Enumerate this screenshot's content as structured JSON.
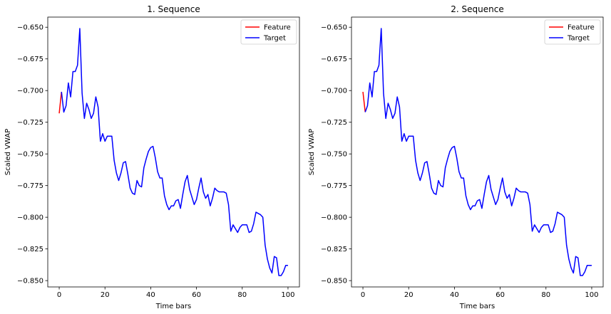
{
  "chart_data": [
    {
      "type": "line",
      "title": "1. Sequence",
      "xlabel": "Time bars",
      "ylabel": "Scaled VWAP",
      "xlim": [
        -5,
        105
      ],
      "ylim": [
        -0.855,
        -0.642
      ],
      "xticks": [
        0,
        20,
        40,
        60,
        80,
        100
      ],
      "yticks": [
        -0.65,
        -0.675,
        -0.7,
        -0.725,
        -0.75,
        -0.775,
        -0.8,
        -0.825,
        -0.85
      ],
      "ytick_labels": [
        "−0.650",
        "−0.675",
        "−0.700",
        "−0.725",
        "−0.750",
        "−0.775",
        "−0.800",
        "−0.825",
        "−0.850"
      ],
      "legend": "top-right",
      "grid": false,
      "series": [
        {
          "name": "Feature",
          "color": "#ff0000",
          "x": [
            0,
            1
          ],
          "values": [
            -0.718,
            -0.701
          ]
        },
        {
          "name": "Target",
          "color": "#0000ff",
          "x_start": 1,
          "values": [
            -0.701,
            -0.717,
            -0.712,
            -0.694,
            -0.705,
            -0.685,
            -0.685,
            -0.68,
            -0.651,
            -0.702,
            -0.722,
            -0.71,
            -0.715,
            -0.722,
            -0.718,
            -0.705,
            -0.713,
            -0.74,
            -0.734,
            -0.74,
            -0.736,
            -0.736,
            -0.736,
            -0.755,
            -0.765,
            -0.771,
            -0.765,
            -0.757,
            -0.756,
            -0.766,
            -0.777,
            -0.781,
            -0.782,
            -0.771,
            -0.775,
            -0.776,
            -0.761,
            -0.754,
            -0.748,
            -0.745,
            -0.744,
            -0.753,
            -0.764,
            -0.769,
            -0.769,
            -0.783,
            -0.79,
            -0.794,
            -0.791,
            -0.791,
            -0.787,
            -0.786,
            -0.793,
            -0.782,
            -0.772,
            -0.767,
            -0.778,
            -0.784,
            -0.79,
            -0.786,
            -0.777,
            -0.769,
            -0.78,
            -0.785,
            -0.782,
            -0.791,
            -0.785,
            -0.777,
            -0.779,
            -0.78,
            -0.78,
            -0.78,
            -0.781,
            -0.79,
            -0.811,
            -0.806,
            -0.809,
            -0.812,
            -0.808,
            -0.806,
            -0.806,
            -0.806,
            -0.812,
            -0.811,
            -0.805,
            -0.796,
            -0.797,
            -0.798,
            -0.8,
            -0.822,
            -0.833,
            -0.84,
            -0.844,
            -0.831,
            -0.832,
            -0.846,
            -0.846,
            -0.843,
            -0.838,
            -0.838
          ]
        }
      ]
    },
    {
      "type": "line",
      "title": "2. Sequence",
      "xlabel": "Time bars",
      "ylabel": "Scaled VWAP",
      "xlim": [
        -5,
        105
      ],
      "ylim": [
        -0.855,
        -0.642
      ],
      "xticks": [
        0,
        20,
        40,
        60,
        80,
        100
      ],
      "yticks": [
        -0.65,
        -0.675,
        -0.7,
        -0.725,
        -0.75,
        -0.775,
        -0.8,
        -0.825,
        -0.85
      ],
      "ytick_labels": [
        "−0.650",
        "−0.675",
        "−0.700",
        "−0.725",
        "−0.750",
        "−0.775",
        "−0.800",
        "−0.825",
        "−0.850"
      ],
      "legend": "top-right",
      "grid": false,
      "series": [
        {
          "name": "Feature",
          "color": "#ff0000",
          "x": [
            0,
            1
          ],
          "values": [
            -0.701,
            -0.717
          ]
        },
        {
          "name": "Target",
          "color": "#0000ff",
          "x_start": 1,
          "values": [
            -0.717,
            -0.712,
            -0.694,
            -0.705,
            -0.685,
            -0.685,
            -0.68,
            -0.651,
            -0.702,
            -0.722,
            -0.71,
            -0.715,
            -0.722,
            -0.718,
            -0.705,
            -0.713,
            -0.74,
            -0.734,
            -0.74,
            -0.736,
            -0.736,
            -0.736,
            -0.755,
            -0.765,
            -0.771,
            -0.765,
            -0.757,
            -0.756,
            -0.766,
            -0.777,
            -0.781,
            -0.782,
            -0.771,
            -0.775,
            -0.776,
            -0.761,
            -0.754,
            -0.748,
            -0.745,
            -0.744,
            -0.753,
            -0.764,
            -0.769,
            -0.769,
            -0.783,
            -0.79,
            -0.794,
            -0.791,
            -0.791,
            -0.787,
            -0.786,
            -0.793,
            -0.782,
            -0.772,
            -0.767,
            -0.778,
            -0.784,
            -0.79,
            -0.786,
            -0.777,
            -0.769,
            -0.78,
            -0.785,
            -0.782,
            -0.791,
            -0.785,
            -0.777,
            -0.779,
            -0.78,
            -0.78,
            -0.78,
            -0.781,
            -0.79,
            -0.811,
            -0.806,
            -0.809,
            -0.812,
            -0.808,
            -0.806,
            -0.806,
            -0.806,
            -0.812,
            -0.811,
            -0.805,
            -0.796,
            -0.797,
            -0.798,
            -0.8,
            -0.822,
            -0.833,
            -0.84,
            -0.844,
            -0.831,
            -0.832,
            -0.846,
            -0.846,
            -0.843,
            -0.838,
            -0.838,
            -0.838
          ]
        }
      ]
    }
  ]
}
